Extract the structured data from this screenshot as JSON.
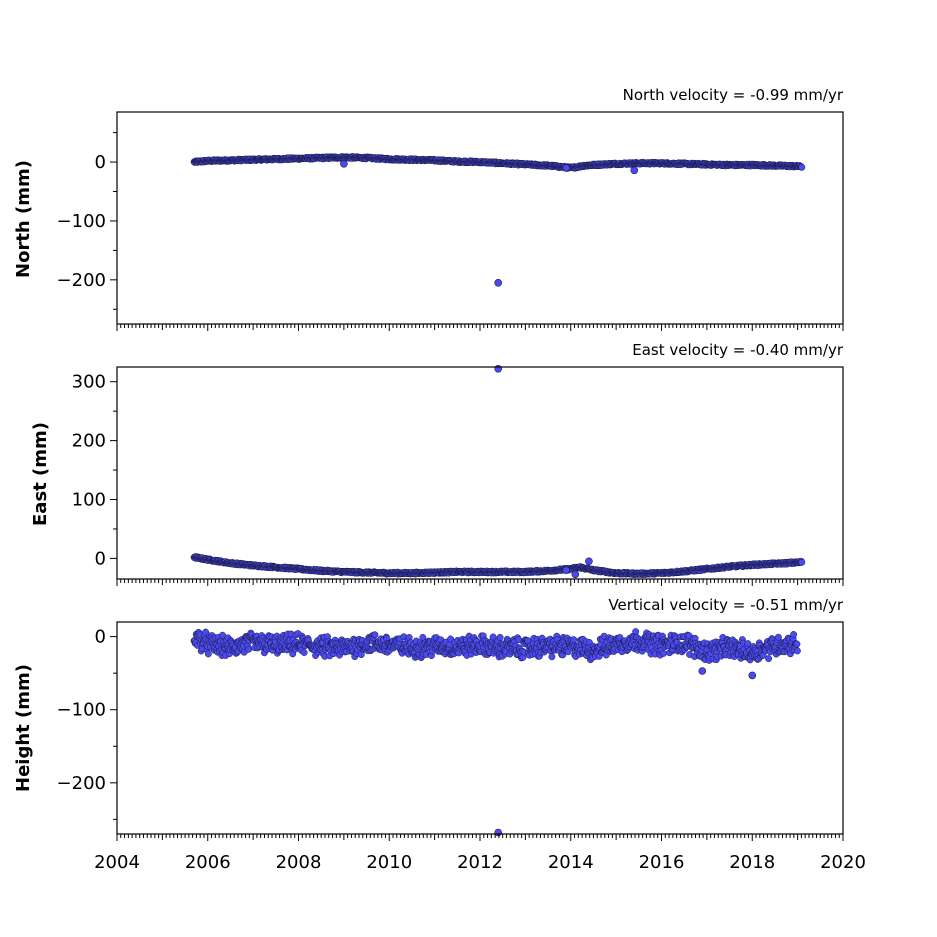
{
  "colors": {
    "marker_fill": "#4a4af0",
    "marker_edge": "#1a1a40",
    "axis": "#000000"
  },
  "chart_data": [
    {
      "type": "scatter",
      "title": "North velocity = -0.99 mm/yr",
      "ylabel": "North (mm)",
      "xlim": [
        2004,
        2020
      ],
      "ylim": [
        -275,
        85
      ],
      "yticks": [
        0,
        -100,
        -200
      ],
      "ytick_labels": [
        "0",
        "−100",
        "−200"
      ],
      "xticks": [
        2004,
        2006,
        2008,
        2010,
        2012,
        2014,
        2016,
        2018,
        2020
      ],
      "series": [
        {
          "x": [
            2005.7,
            2006.0,
            2006.5,
            2007.0,
            2007.5,
            2008.0,
            2008.5,
            2009.0,
            2009.5,
            2010.0,
            2010.5,
            2011.0,
            2011.5,
            2012.0,
            2012.5,
            2013.0,
            2013.5,
            2013.9,
            2014.0,
            2014.3,
            2014.7,
            2015.0,
            2015.5,
            2016.0,
            2016.5,
            2017.0,
            2017.5,
            2018.0,
            2018.5,
            2019.0,
            2019.1
          ],
          "y": [
            0,
            2,
            3,
            4,
            5,
            6,
            7,
            8,
            7,
            5,
            4,
            3,
            1,
            0,
            -2,
            -4,
            -6,
            -9,
            -10,
            -6,
            -4,
            -3,
            -2,
            -2,
            -3,
            -4,
            -5,
            -5,
            -6,
            -7,
            -8
          ]
        }
      ],
      "outliers": {
        "x": [
          2012.4,
          2015.4,
          2013.9,
          2009.0
        ],
        "y": [
          -205,
          -14,
          -10,
          -3
        ]
      }
    },
    {
      "type": "scatter",
      "title": "East velocity = -0.40 mm/yr",
      "ylabel": "East (mm)",
      "xlim": [
        2004,
        2020
      ],
      "ylim": [
        -35,
        325
      ],
      "yticks": [
        300,
        200,
        100,
        0
      ],
      "ytick_labels": [
        "300",
        "200",
        "100",
        "0"
      ],
      "xticks": [
        2004,
        2006,
        2008,
        2010,
        2012,
        2014,
        2016,
        2018,
        2020
      ],
      "series": [
        {
          "x": [
            2005.7,
            2006.0,
            2006.5,
            2007.0,
            2007.5,
            2008.0,
            2008.5,
            2009.0,
            2009.5,
            2010.0,
            2010.5,
            2011.0,
            2011.5,
            2012.0,
            2012.5,
            2013.0,
            2013.5,
            2014.0,
            2014.2,
            2014.5,
            2015.0,
            2015.5,
            2016.0,
            2016.5,
            2017.0,
            2017.5,
            2018.0,
            2018.5,
            2019.0,
            2019.1
          ],
          "y": [
            2,
            -2,
            -8,
            -12,
            -15,
            -18,
            -21,
            -23,
            -24,
            -25,
            -25,
            -24,
            -23,
            -23,
            -23,
            -23,
            -21,
            -18,
            -15,
            -20,
            -25,
            -26,
            -25,
            -22,
            -18,
            -14,
            -11,
            -9,
            -7,
            -6
          ]
        }
      ],
      "outliers": {
        "x": [
          2012.4,
          2014.4,
          2014.1,
          2013.9
        ],
        "y": [
          322,
          -5,
          -27,
          -20
        ]
      }
    },
    {
      "type": "scatter",
      "title": "Vertical velocity = -0.51 mm/yr",
      "ylabel": "Height (mm)",
      "xlim": [
        2004,
        2020
      ],
      "ylim": [
        -270,
        20
      ],
      "yticks": [
        0,
        -100,
        -200
      ],
      "ytick_labels": [
        "0",
        "−100",
        "−200"
      ],
      "xtick_labels": [
        "2004",
        "2006",
        "2008",
        "2010",
        "2012",
        "2014",
        "2016",
        "2018",
        "2020"
      ],
      "xticks": [
        2004,
        2006,
        2008,
        2010,
        2012,
        2014,
        2016,
        2018,
        2020
      ],
      "series": [
        {
          "x": [
            2005.7,
            2006.0,
            2006.5,
            2007.0,
            2007.5,
            2008.0,
            2008.5,
            2009.0,
            2009.5,
            2010.0,
            2010.5,
            2011.0,
            2011.5,
            2012.0,
            2012.5,
            2013.0,
            2013.5,
            2014.0,
            2014.5,
            2015.0,
            2015.5,
            2016.0,
            2016.5,
            2017.0,
            2017.5,
            2018.0,
            2018.5,
            2019.0
          ],
          "y": [
            0,
            -10,
            -15,
            -8,
            -12,
            -10,
            -14,
            -16,
            -9,
            -11,
            -15,
            -13,
            -14,
            -12,
            -15,
            -16,
            -13,
            -14,
            -18,
            -10,
            -5,
            -12,
            -8,
            -20,
            -15,
            -22,
            -12,
            -10
          ]
        }
      ],
      "outliers": {
        "x": [
          2012.4,
          2018.0,
          2016.9
        ],
        "y": [
          -268,
          -53,
          -47
        ]
      }
    }
  ]
}
